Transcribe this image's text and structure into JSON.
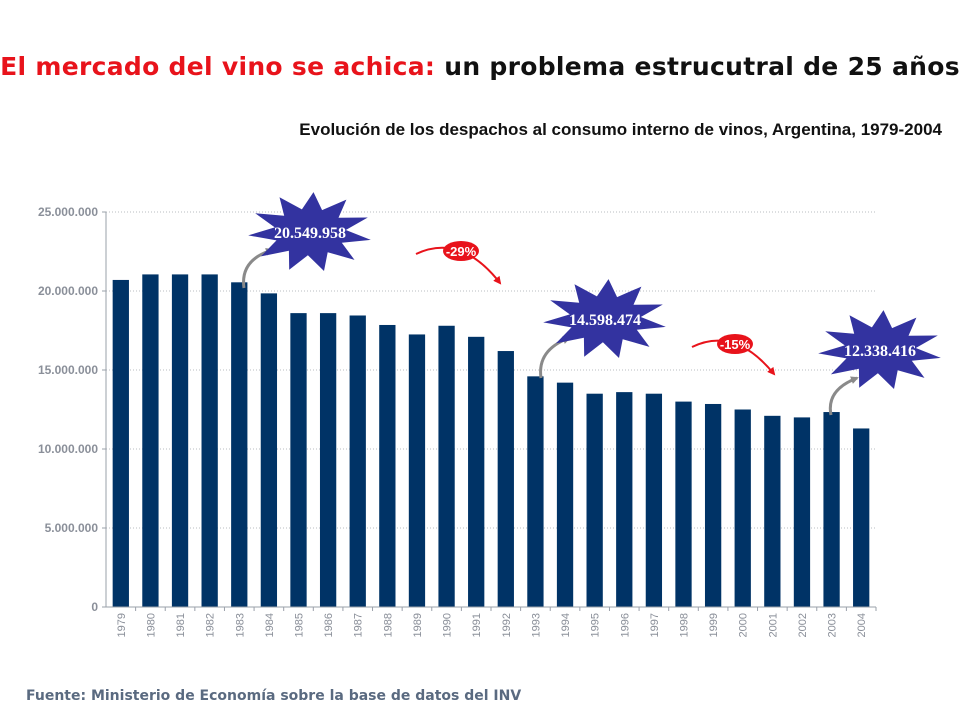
{
  "header": {
    "title_red": "El mercado del vino se achica:",
    "title_rest": "un problema estrucutral de 25 años"
  },
  "footer": {
    "source": "Fuente: Ministerio de Economía sobre la base de datos del INV"
  },
  "chart_data": {
    "type": "bar",
    "title": "El mercado del vino se achica: un problema estrucutral de 25 años",
    "subtitle": "Evolución de los despachos al consumo interno de vinos, Argentina, 1979-2004",
    "categories": [
      "1979",
      "1980",
      "1981",
      "1982",
      "1983",
      "1984",
      "1985",
      "1986",
      "1987",
      "1988",
      "1989",
      "1990",
      "1991",
      "1992",
      "1993",
      "1994",
      "1995",
      "1996",
      "1997",
      "1998",
      "1999",
      "2000",
      "2001",
      "2002",
      "2003",
      "2004"
    ],
    "values": [
      20700000,
      21050000,
      21050000,
      21050000,
      20549958,
      19850000,
      18600000,
      18600000,
      18450000,
      17850000,
      17250000,
      17800000,
      17100000,
      16200000,
      14598474,
      14200000,
      13500000,
      13600000,
      13500000,
      13000000,
      12850000,
      12500000,
      12100000,
      12000000,
      12338416,
      11300000
    ],
    "yticks": [
      "0",
      "5.000.000",
      "10.000.000",
      "15.000.000",
      "20.000.000",
      "25.000.000"
    ],
    "ytick_values": [
      0,
      5000000,
      10000000,
      15000000,
      20000000,
      25000000
    ],
    "ylim": [
      0,
      25000000
    ],
    "grid": true,
    "bar_color": "#003366",
    "callouts": [
      {
        "label": "20.549.958",
        "year": "1983",
        "color": "#3333a0"
      },
      {
        "label": "14.598.474",
        "year": "1993",
        "color": "#3333a0"
      },
      {
        "label": "12.338.416",
        "year": "2003",
        "color": "#3333a0"
      }
    ],
    "changes": [
      {
        "label": "-29%",
        "color": "#e8131b"
      },
      {
        "label": "-15%",
        "color": "#e8131b"
      }
    ]
  }
}
